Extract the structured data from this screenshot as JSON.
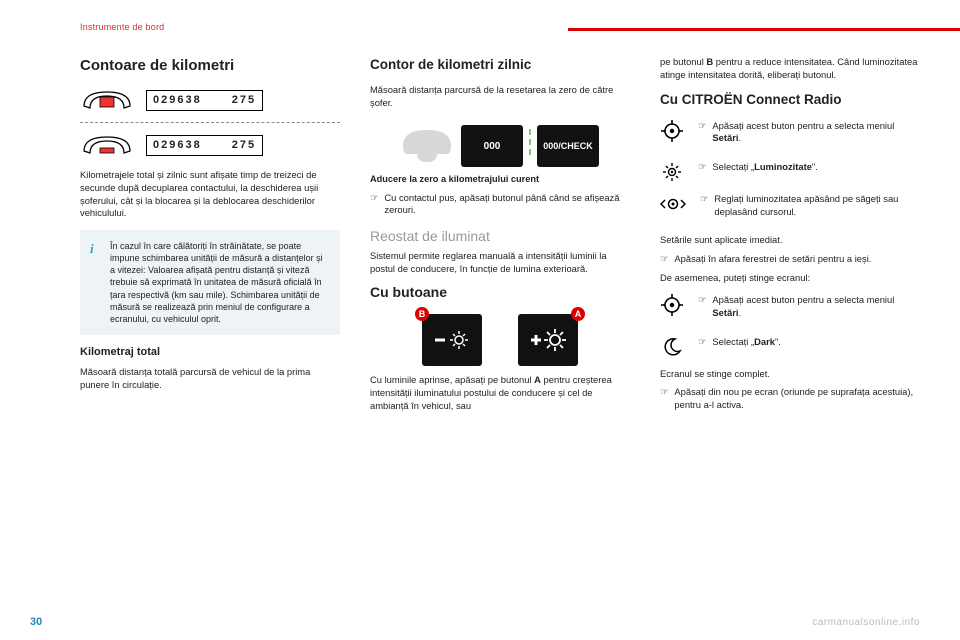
{
  "breadcrumb": "Instrumente de bord",
  "page_number": "30",
  "watermark": "carmanualsonline.info",
  "col1": {
    "h_odo": "Contoare de kilometri",
    "odo_total": "029638",
    "odo_trip": "275",
    "gauge": {
      "outline": "#000000",
      "red_fill": "#e33333",
      "divider_dash": "#888888"
    },
    "p_odo": "Kilometrajele total și zilnic sunt afișate timp de treizeci de secunde după decuplarea contactului, la deschiderea ușii șoferului, cât și la blocarea și la deblocarea deschiderilor vehiculului.",
    "info": "În cazul în care călătoriți în străinătate, se poate impune schimbarea unității de măsură a distanțelor și a vitezei: Valoarea afișată pentru distanță și viteză trebuie să exprimată în unitatea de măsură oficială în țara respectivă (km sau mile). Schimbarea unității de măsură se realizează prin meniul de configurare a ecranului, cu vehiculul oprit.",
    "h_total": "Kilometraj total",
    "p_total": "Măsoară distanța totală parcursă de vehicul de la prima punere în circulație."
  },
  "col2": {
    "h_daily": "Contor de kilometri zilnic",
    "p_daily": "Măsoară distanța parcursă de la resetarea la zero de către șofer.",
    "trip_btn_left": "000",
    "trip_btn_right": "000/CHECK",
    "dash_color": "#d7d7d7",
    "btn_bg": "#111111",
    "tick_color": "#79c779",
    "cap_reset": "Aducere la zero a kilometrajului curent",
    "step_reset": "Cu contactul pus, apăsați butonul până când se afișează zerouri.",
    "h_reostat": "Reostat de iluminat",
    "p_reostat": "Sistemul permite reglarea manuală a intensității luminii la postul de conducere, în funcție de lumina exterioară.",
    "h_buttons": "Cu butoane",
    "badge_left": "B",
    "badge_right": "A",
    "badge_bg": "#d00000",
    "p_buttons_pre": "Cu luminile aprinse, apăsați pe butonul ",
    "p_buttons_bold": "A",
    "p_buttons_post": " pentru creșterea intensității iluminatului postului de conducere și cel de ambianță în vehicul, sau"
  },
  "col3": {
    "p_top_pre": "pe butonul ",
    "p_top_bold": "B",
    "p_top_post": " pentru a reduce intensitatea. Când luminozitatea atinge intensitatea dorită, eliberați butonul.",
    "h_radio": "Cu CITROËN Connect Radio",
    "lines1": [
      {
        "icon": "target",
        "pre": "Apăsați acest buton pentru a selecta meniul ",
        "bold": "Setări",
        "post": "."
      },
      {
        "icon": "sun",
        "pre": "Selectați „",
        "bold": "Luminozitate",
        "post": "\"."
      },
      {
        "icon": "slider",
        "pre": "Reglați luminozitatea apăsând pe săgeți sau deplasând cursorul.",
        "bold": "",
        "post": ""
      }
    ],
    "p_applied": "Setările sunt aplicate imediat.",
    "step_exit": "Apăsați în afara ferestrei de setări pentru a ieși.",
    "p_also": "De asemenea, puteți stinge ecranul:",
    "lines2": [
      {
        "icon": "target",
        "pre": "Apăsați acest buton pentru a selecta meniul ",
        "bold": "Setări",
        "post": "."
      },
      {
        "icon": "moon",
        "pre": "Selectați „",
        "bold": "Dark",
        "post": "\"."
      }
    ],
    "p_off": "Ecranul se stinge complet.",
    "step_on": "Apăsați din nou pe ecran (oriunde pe suprafața acestuia), pentru a-l activa."
  },
  "colors": {
    "accent_red": "#d00000",
    "accent_blue": "#2288bb",
    "info_bg": "#eef3f6",
    "info_i": "#2aa3d4",
    "grey_heading": "#999999"
  }
}
